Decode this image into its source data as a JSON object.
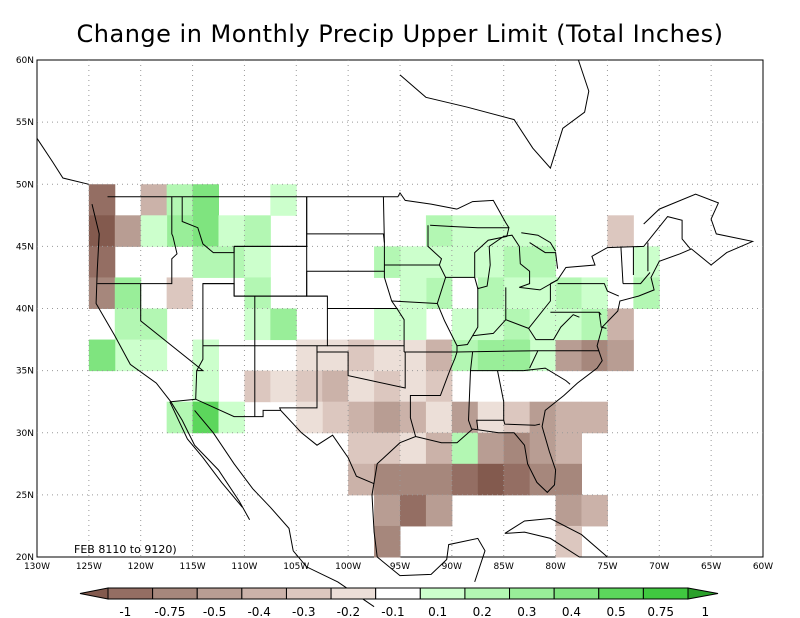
{
  "title": "Change in Monthly Precip Upper Limit (Total Inches)",
  "period_label": "FEB 8110 to 9120)",
  "lat_labels": [
    "60N",
    "55N",
    "50N",
    "45N",
    "40N",
    "35N",
    "30N",
    "25N",
    "20N"
  ],
  "lon_labels": [
    "130W",
    "125W",
    "120W",
    "115W",
    "110W",
    "105W",
    "100W",
    "95W",
    "90W",
    "85W",
    "80W",
    "75W",
    "70W",
    "65W",
    "60W"
  ],
  "colorbar": {
    "labels": [
      "-1",
      "-0.75",
      "-0.5",
      "-0.4",
      "-0.3",
      "-0.2",
      "-0.1",
      "0.1",
      "0.2",
      "0.3",
      "0.4",
      "0.5",
      "0.75",
      "1"
    ],
    "colors": [
      "#835a4e",
      "#946e63",
      "#a6877c",
      "#b89d93",
      "#cbb2a9",
      "#dcc7bf",
      "#ecdfd8",
      "#ffffff",
      "#ccffcc",
      "#b3f7b3",
      "#99ee99",
      "#7fe47f",
      "#5cd65c",
      "#40c840",
      "#2aa02a"
    ]
  },
  "colors": {
    "brown_dark": "#6e4a40",
    "green_bright": "#30d030"
  }
}
